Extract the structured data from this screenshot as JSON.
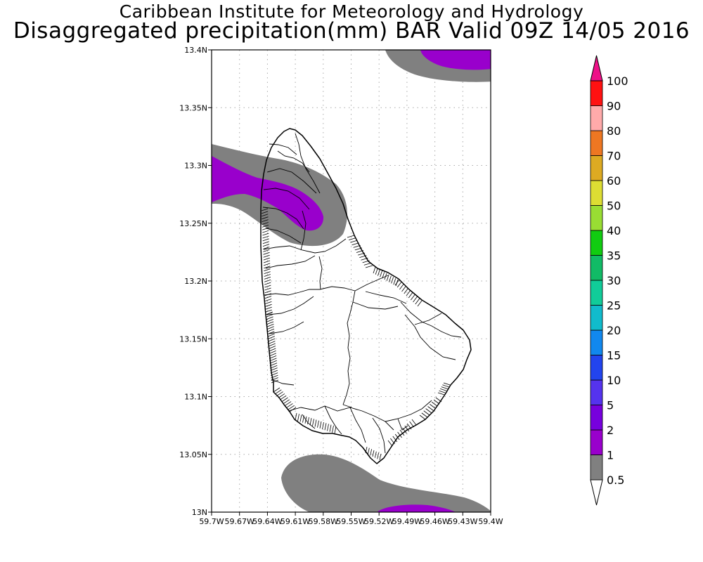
{
  "title": {
    "line1": "Caribbean Institute for Meteorology and Hydrology",
    "line2": "Disaggregated precipitation(mm) BAR Valid 09Z 14/05 2016"
  },
  "map": {
    "region": "Barbados",
    "lat_labels": [
      "13.4N",
      "13.35N",
      "13.3N",
      "13.25N",
      "13.2N",
      "13.15N",
      "13.1N",
      "13.05N",
      "13N"
    ],
    "lon_labels": [
      "59.7W",
      "59.67W",
      "59.64W",
      "59.61W",
      "59.58W",
      "59.55W",
      "59.52W",
      "59.49W",
      "59.46W",
      "59.43W",
      "59.4W"
    ],
    "lat_range": [
      13.0,
      13.4
    ],
    "lon_range": [
      -59.7,
      -59.4
    ],
    "grid": true
  },
  "colorbar": {
    "levels": [
      "0.5",
      "1",
      "2",
      "5",
      "10",
      "15",
      "20",
      "25",
      "30",
      "35",
      "40",
      "50",
      "60",
      "70",
      "80",
      "90",
      "100"
    ],
    "colors": [
      "#808080",
      "#9900cc",
      "#7700dd",
      "#5533ee",
      "#2244ee",
      "#1188ee",
      "#11bbcc",
      "#11cc99",
      "#11bb66",
      "#11cc11",
      "#99dd33",
      "#dddd33",
      "#ddaa22",
      "#ee7722",
      "#ffaaaa",
      "#ff1111",
      "#ee3344",
      "#ee1188"
    ]
  }
}
